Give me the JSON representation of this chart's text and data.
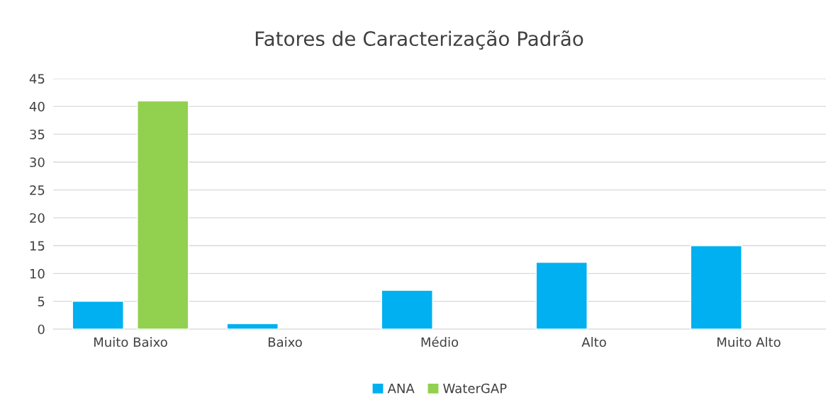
{
  "chart_data": {
    "type": "bar",
    "title": "Fatores de Caracterização Padrão",
    "categories": [
      "Muito Baixo",
      "Baixo",
      "Médio",
      "Alto",
      "Muito Alto"
    ],
    "series": [
      {
        "name": "ANA",
        "color": "#00b0f0",
        "values": [
          5,
          1,
          7,
          12,
          15
        ]
      },
      {
        "name": "WaterGAP",
        "color": "#92d050",
        "values": [
          41,
          null,
          null,
          null,
          null
        ]
      }
    ],
    "ylim": [
      0,
      45
    ],
    "yticks": [
      0,
      5,
      10,
      15,
      20,
      25,
      30,
      35,
      40,
      45
    ],
    "grid": "y",
    "legend": "bottom"
  }
}
